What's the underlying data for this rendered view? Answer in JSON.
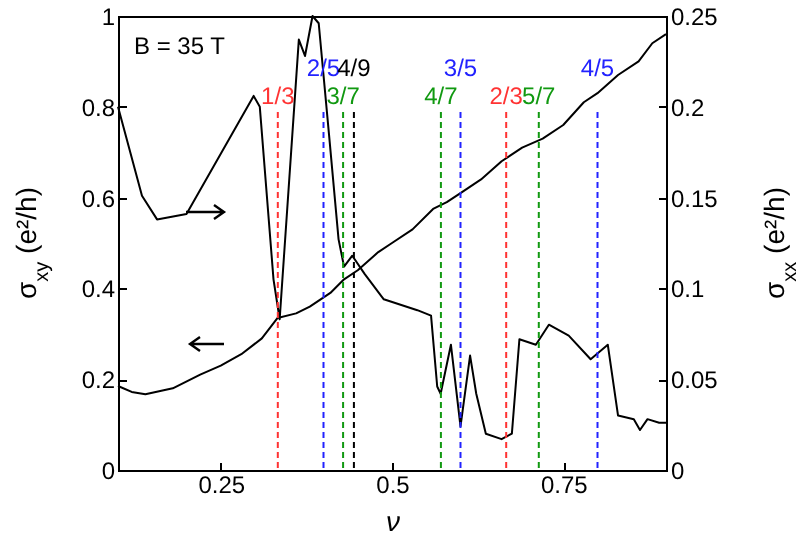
{
  "chart_data": {
    "type": "line",
    "xlabel": "ν",
    "ylabel": "σ$_{xy}$ (e²/h)",
    "y2label": "σ$_{xx}$ (e²/h)",
    "annotations": [
      "B = 35 T",
      "1/3",
      "2/5",
      "3/7",
      "4/9",
      "4/7",
      "3/5",
      "2/3",
      "5/7",
      "4/5"
    ],
    "xlim": [
      0.1,
      0.9
    ],
    "xticks": [
      0.25,
      0.5,
      0.75
    ],
    "ylim": [
      0,
      1
    ],
    "yticks": [
      0,
      0.2,
      0.4,
      0.6,
      0.8,
      1
    ],
    "y2lim": [
      0,
      0.25
    ],
    "y2ticks": [
      0,
      0.05,
      0.1,
      0.15,
      0.2,
      0.25
    ],
    "series": [
      {
        "type": "line",
        "color": "#000000",
        "x": [
          0.1,
          0.12,
          0.14,
          0.18,
          0.22,
          0.25,
          0.28,
          0.31,
          0.333,
          0.36,
          0.38,
          0.41,
          0.43,
          0.45,
          0.48,
          0.5,
          0.53,
          0.56,
          0.58,
          0.6,
          0.63,
          0.66,
          0.69,
          0.72,
          0.75,
          0.78,
          0.8,
          0.83,
          0.86,
          0.88,
          0.9
        ],
        "values": [
          0.185,
          0.172,
          0.167,
          0.18,
          0.21,
          0.23,
          0.255,
          0.29,
          0.335,
          0.345,
          0.36,
          0.39,
          0.42,
          0.44,
          0.48,
          0.5,
          0.53,
          0.575,
          0.59,
          0.61,
          0.64,
          0.68,
          0.71,
          0.73,
          0.76,
          0.81,
          0.83,
          0.87,
          0.9,
          0.94,
          0.96
        ]
      },
      {
        "type": "line",
        "axis": "y2",
        "color": "#000000",
        "x": [
          0.1,
          0.135,
          0.157,
          0.2,
          0.298,
          0.307,
          0.327,
          0.336,
          0.364,
          0.373,
          0.384,
          0.393,
          0.408,
          0.422,
          0.43,
          0.442,
          0.46,
          0.488,
          0.537,
          0.557,
          0.566,
          0.571,
          0.586,
          0.6,
          0.614,
          0.623,
          0.637,
          0.66,
          0.675,
          0.686,
          0.71,
          0.729,
          0.758,
          0.79,
          0.815,
          0.83,
          0.853,
          0.862,
          0.873,
          0.89,
          0.9
        ],
        "values": [
          0.2,
          0.151,
          0.138,
          0.141,
          0.206,
          0.2,
          0.105,
          0.083,
          0.237,
          0.228,
          0.25,
          0.246,
          0.185,
          0.127,
          0.112,
          0.118,
          0.108,
          0.094,
          0.088,
          0.085,
          0.046,
          0.042,
          0.069,
          0.024,
          0.063,
          0.042,
          0.02,
          0.017,
          0.02,
          0.072,
          0.069,
          0.08,
          0.074,
          0.061,
          0.069,
          0.03,
          0.028,
          0.022,
          0.028,
          0.026,
          0.026
        ]
      }
    ],
    "ref_lines": [
      {
        "axis": "x",
        "value": 0.3333,
        "color": "#ff3333",
        "line_style": "dashed"
      },
      {
        "axis": "x",
        "value": 0.4,
        "color": "#2222ff",
        "line_style": "dashed"
      },
      {
        "axis": "x",
        "value": 0.4286,
        "color": "#119911",
        "line_style": "dashed"
      },
      {
        "axis": "x",
        "value": 0.4444,
        "color": "#000000",
        "line_style": "dashed"
      },
      {
        "axis": "x",
        "value": 0.5714,
        "color": "#119911",
        "line_style": "dashed"
      },
      {
        "axis": "x",
        "value": 0.6,
        "color": "#2222ff",
        "line_style": "dashed"
      },
      {
        "axis": "x",
        "value": 0.6667,
        "color": "#ff3333",
        "line_style": "dashed"
      },
      {
        "axis": "x",
        "value": 0.7143,
        "color": "#119911",
        "line_style": "dashed"
      },
      {
        "axis": "x",
        "value": 0.8,
        "color": "#2222ff",
        "line_style": "dashed"
      }
    ]
  }
}
